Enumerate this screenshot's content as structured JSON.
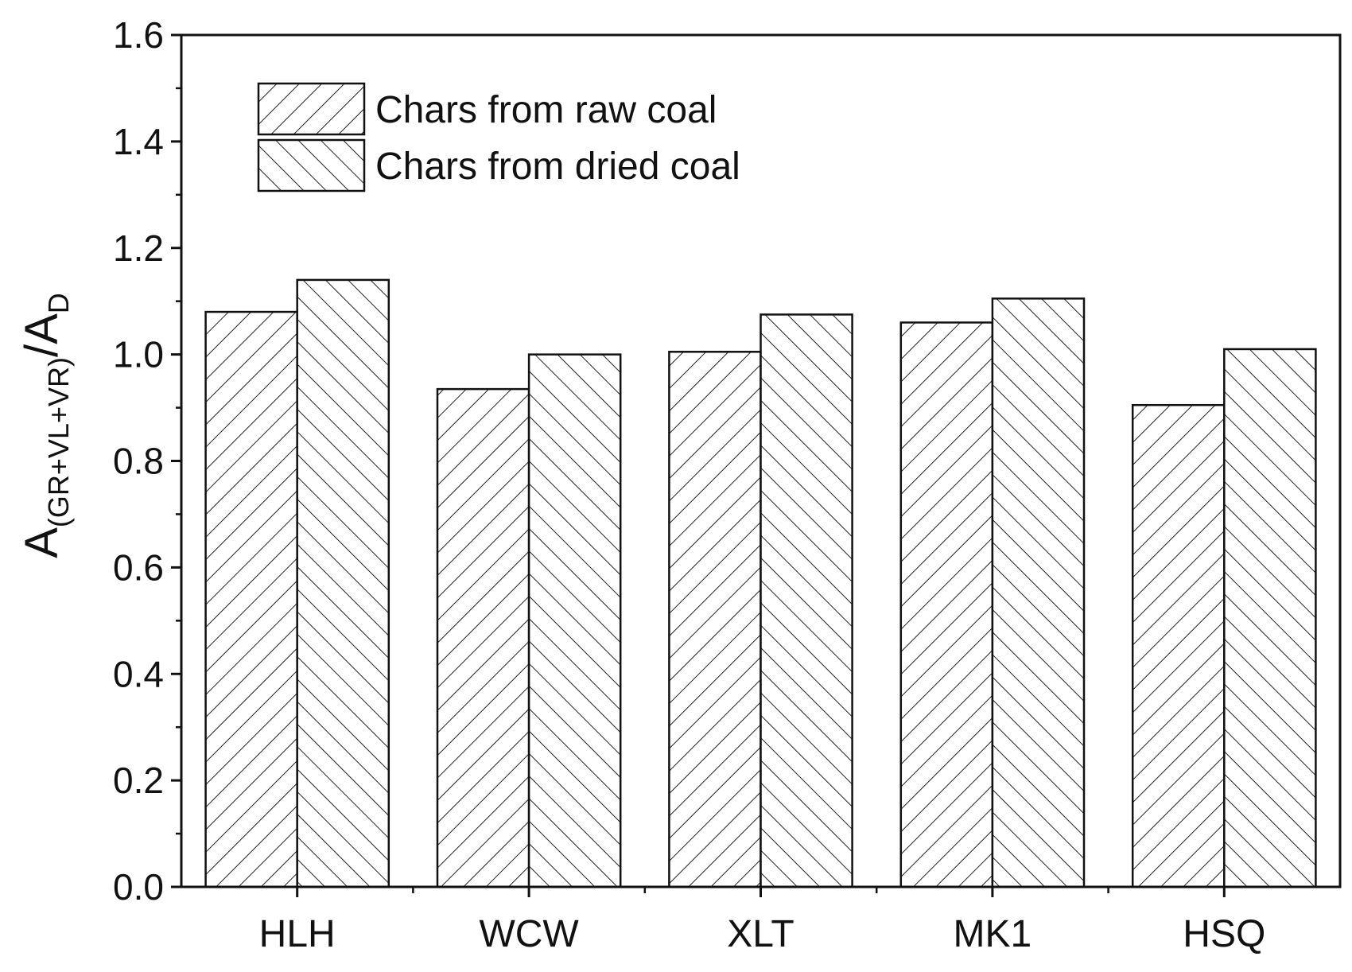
{
  "chart_data": {
    "type": "bar",
    "categories": [
      "HLH",
      "WCW",
      "XLT",
      "MK1",
      "HSQ"
    ],
    "series": [
      {
        "name": "Chars from raw coal",
        "pattern": "hatch-forward",
        "values": [
          1.08,
          0.935,
          1.005,
          1.06,
          0.905
        ]
      },
      {
        "name": "Chars from dried coal",
        "pattern": "hatch-backward",
        "values": [
          1.14,
          1.0,
          1.075,
          1.105,
          1.01
        ]
      }
    ],
    "ylim": [
      0,
      1.6
    ],
    "yticks": [
      "0.0",
      "0.2",
      "0.4",
      "0.6",
      "0.8",
      "1.0",
      "1.2",
      "1.4",
      "1.6"
    ],
    "ylabel": {
      "main": "A",
      "sub": "(GR+VL+VR)",
      "slash": "/A",
      "sub2": "D"
    },
    "xlabel": "",
    "title": "",
    "legend_position": "top-left",
    "grid": false,
    "colors": {
      "stroke": "#1a1a1a",
      "fill": "#ffffff"
    }
  }
}
